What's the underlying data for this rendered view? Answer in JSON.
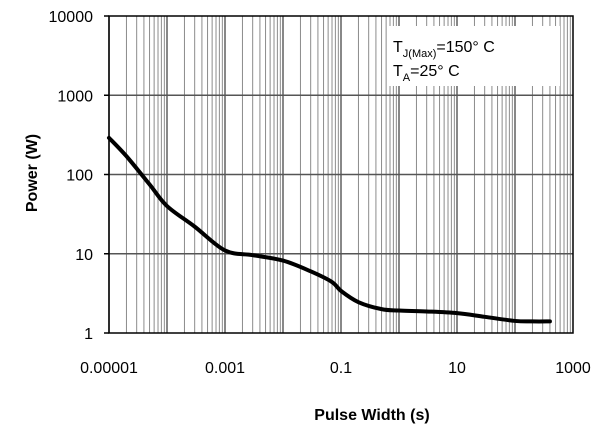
{
  "chart_data": {
    "type": "line",
    "xscale": "log",
    "yscale": "log",
    "xlim": [
      1e-05,
      1000
    ],
    "ylim": [
      1,
      10000
    ],
    "grid": true,
    "xlabel": "Pulse Width (s)",
    "ylabel": "Power (W)",
    "xticks": [
      "0.00001",
      "0.001",
      "0.1",
      "10",
      "1000"
    ],
    "yticks": [
      "1",
      "10",
      "100",
      "1000",
      "10000"
    ],
    "annotation": {
      "line1": {
        "main": "T",
        "sub": "J(Max)",
        "rest": "=150° C"
      },
      "line2": {
        "main": "T",
        "sub": "A",
        "rest": "=25° C"
      }
    },
    "series": [
      {
        "color": "#000000",
        "x": [
          1e-05,
          2e-05,
          5e-05,
          0.0001,
          0.0003,
          0.001,
          0.003,
          0.01,
          0.03,
          0.07,
          0.1,
          0.2,
          0.5,
          1,
          3,
          10,
          30,
          100,
          200,
          400
        ],
        "y": [
          290,
          170,
          75,
          40,
          22,
          11,
          9.6,
          8.2,
          6,
          4.4,
          3.4,
          2.45,
          2.0,
          1.92,
          1.87,
          1.78,
          1.6,
          1.42,
          1.4,
          1.4
        ]
      }
    ]
  }
}
